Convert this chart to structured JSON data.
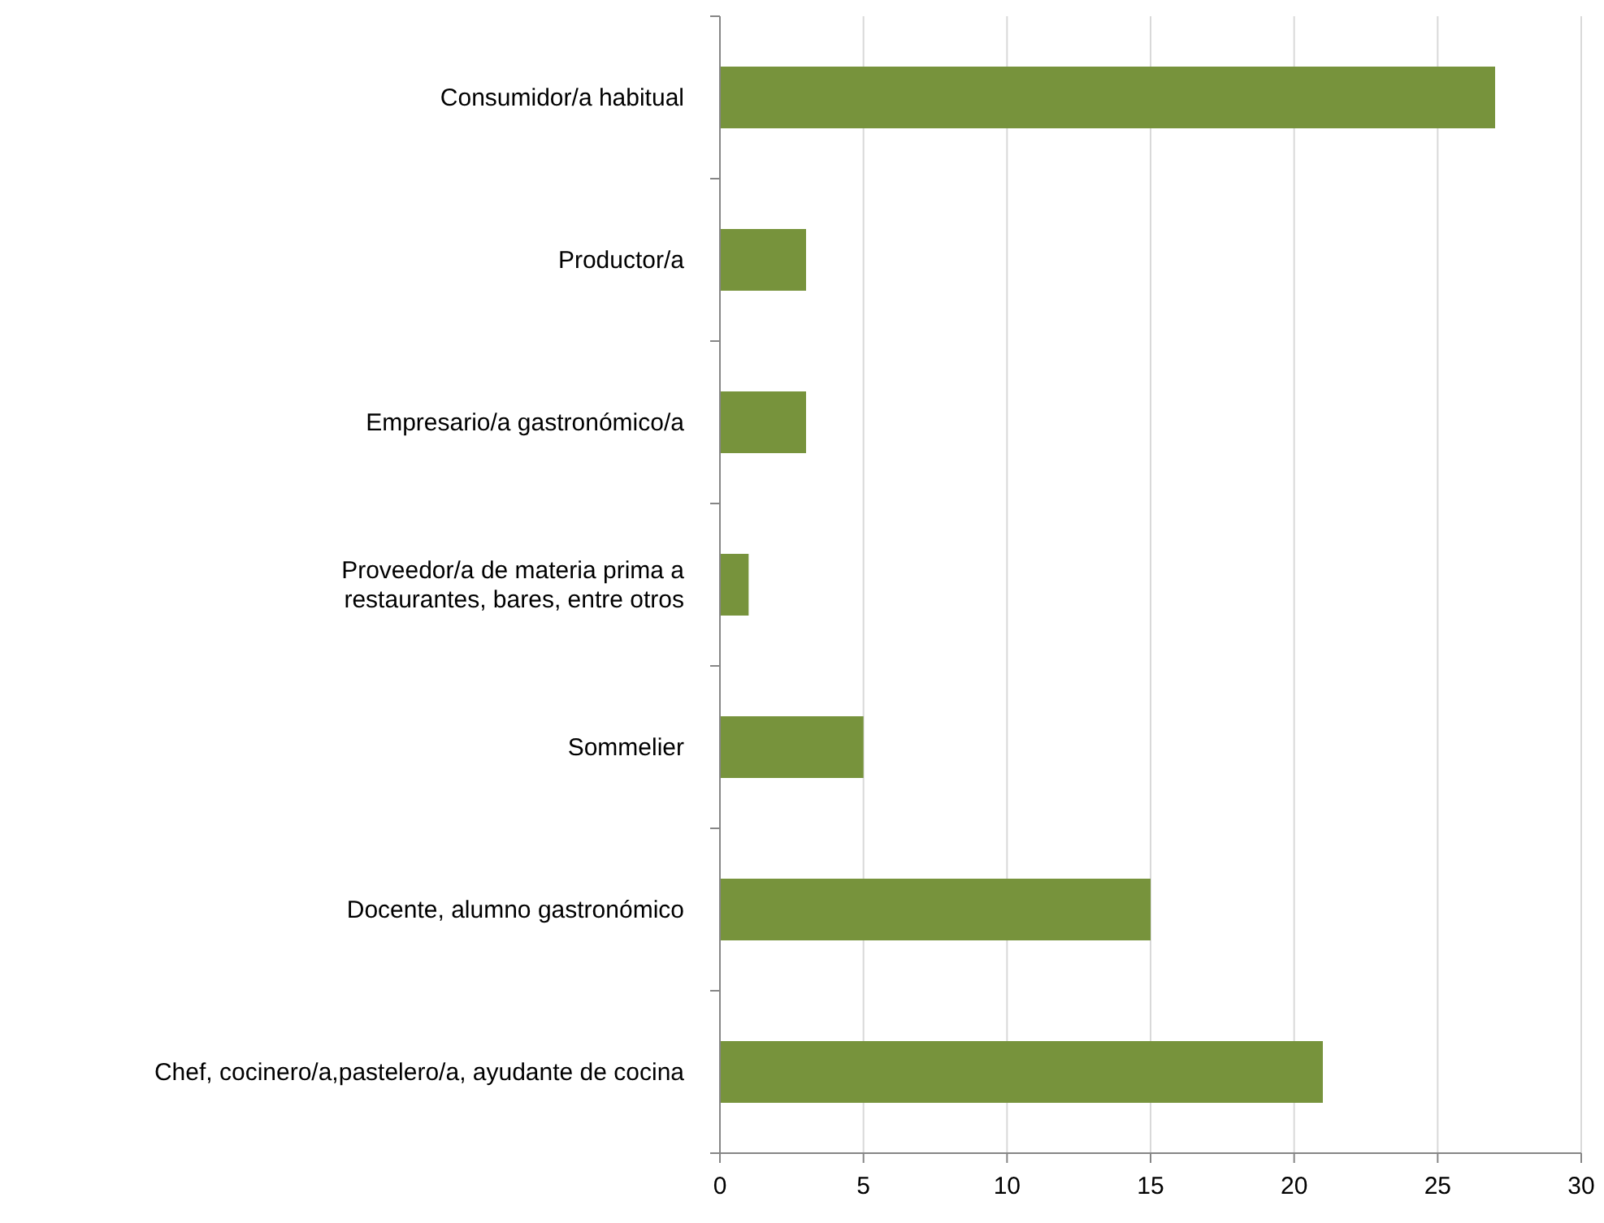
{
  "chart_data": {
    "type": "bar",
    "orientation": "horizontal",
    "categories": [
      "Consumidor/a habitual",
      "Productor/a",
      "Empresario/a gastronómico/a",
      "Proveedor/a de materia prima a\nrestaurantes, bares, entre otros",
      "Sommelier",
      "Docente, alumno gastronómico",
      "Chef, cocinero/a,pastelero/a, ayudante de cocina"
    ],
    "values": [
      27,
      3,
      3,
      1,
      5,
      15,
      21
    ],
    "color": "#77933c",
    "xlim": [
      0,
      30
    ],
    "xticks": [
      0,
      5,
      10,
      15,
      20,
      25,
      30
    ],
    "grid": "x"
  }
}
